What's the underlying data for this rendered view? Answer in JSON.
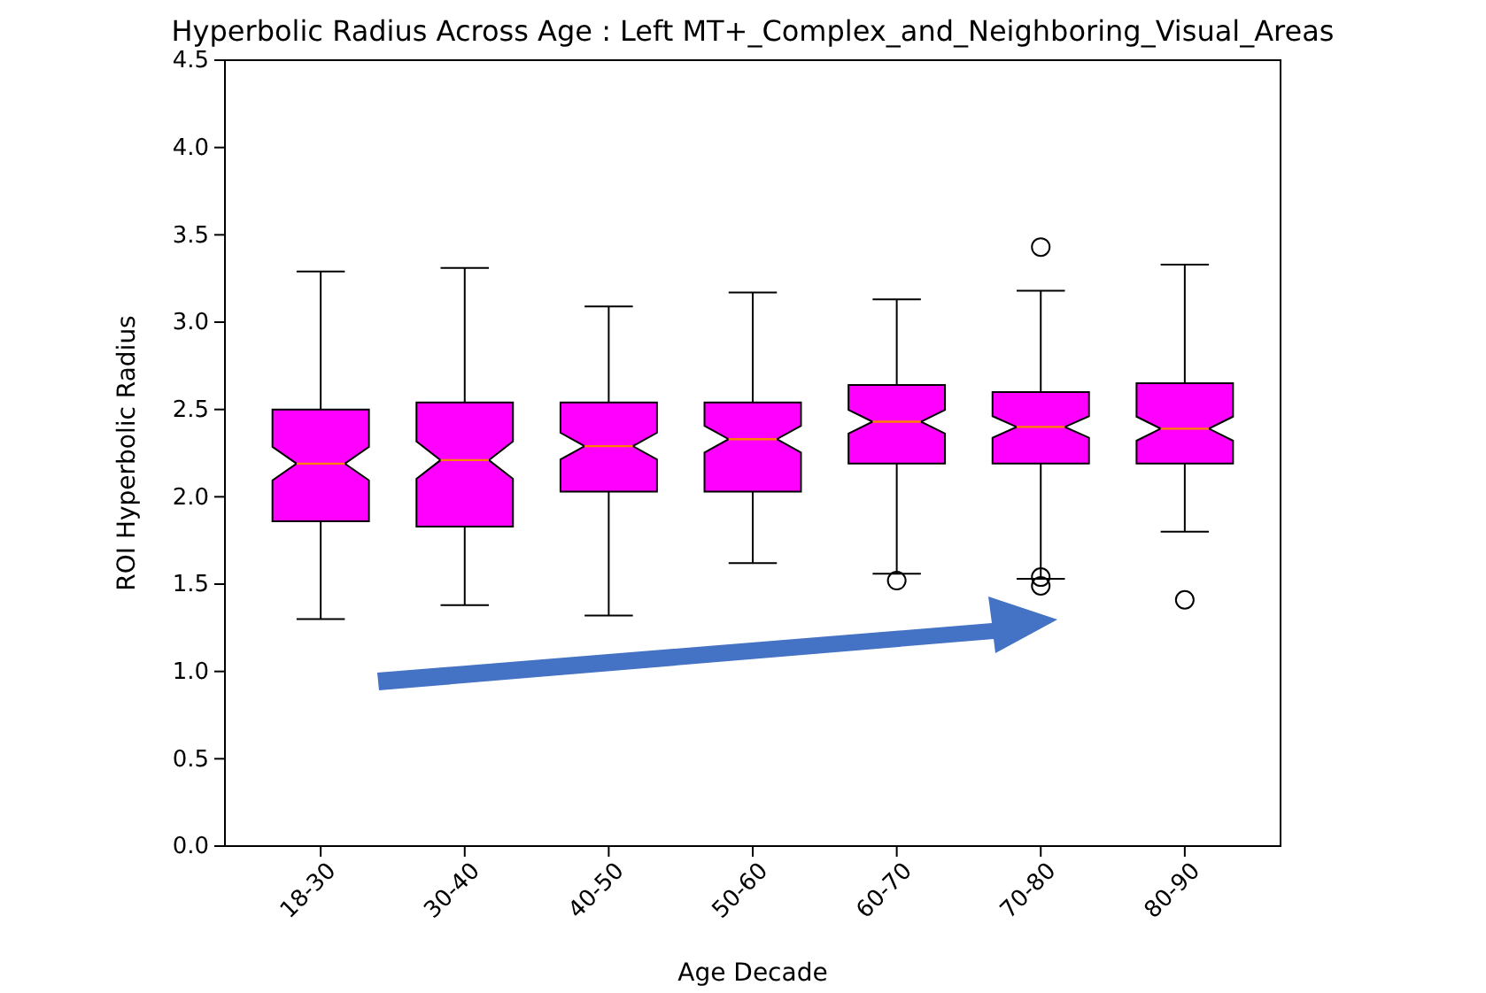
{
  "chart_data": {
    "type": "box",
    "title": "Hyperbolic Radius Across Age : Left MT+_Complex_and_Neighboring_Visual_Areas",
    "xlabel": "Age Decade",
    "ylabel": "ROI Hyperbolic Radius",
    "categories": [
      "18-30",
      "30-40",
      "40-50",
      "50-60",
      "60-70",
      "70-80",
      "80-90"
    ],
    "color": "#ff00ff",
    "boxes": [
      {
        "low": 1.3,
        "q1": 1.86,
        "median": 2.19,
        "q3": 2.5,
        "high": 3.29
      },
      {
        "low": 1.38,
        "q1": 1.83,
        "median": 2.21,
        "q3": 2.54,
        "high": 3.31
      },
      {
        "low": 1.32,
        "q1": 2.03,
        "median": 2.29,
        "q3": 2.54,
        "high": 3.09
      },
      {
        "low": 1.62,
        "q1": 2.03,
        "median": 2.33,
        "q3": 2.54,
        "high": 3.17
      },
      {
        "low": 1.56,
        "q1": 2.19,
        "median": 2.43,
        "q3": 2.64,
        "high": 3.13,
        "outliers": [
          1.52
        ]
      },
      {
        "low": 1.53,
        "q1": 2.19,
        "median": 2.4,
        "q3": 2.6,
        "high": 3.18,
        "outliers": [
          3.43,
          1.54,
          1.49
        ]
      },
      {
        "low": 1.8,
        "q1": 2.19,
        "median": 2.39,
        "q3": 2.65,
        "high": 3.33,
        "outliers": [
          1.41
        ]
      }
    ],
    "ylim": [
      0,
      4.5
    ],
    "yticks": [
      {
        "value": 0,
        "label": "0.0"
      },
      {
        "value": 0.5,
        "label": "0.5"
      },
      {
        "value": 1,
        "label": "1.0"
      },
      {
        "value": 1.5,
        "label": "1.5"
      },
      {
        "value": 2,
        "label": "2.0"
      },
      {
        "value": 2.5,
        "label": "2.5"
      },
      {
        "value": 3,
        "label": "3.0"
      },
      {
        "value": 3.5,
        "label": "3.5"
      },
      {
        "value": 4,
        "label": "4.0"
      },
      {
        "value": 4.5,
        "label": "4.5"
      }
    ],
    "grid": false
  }
}
